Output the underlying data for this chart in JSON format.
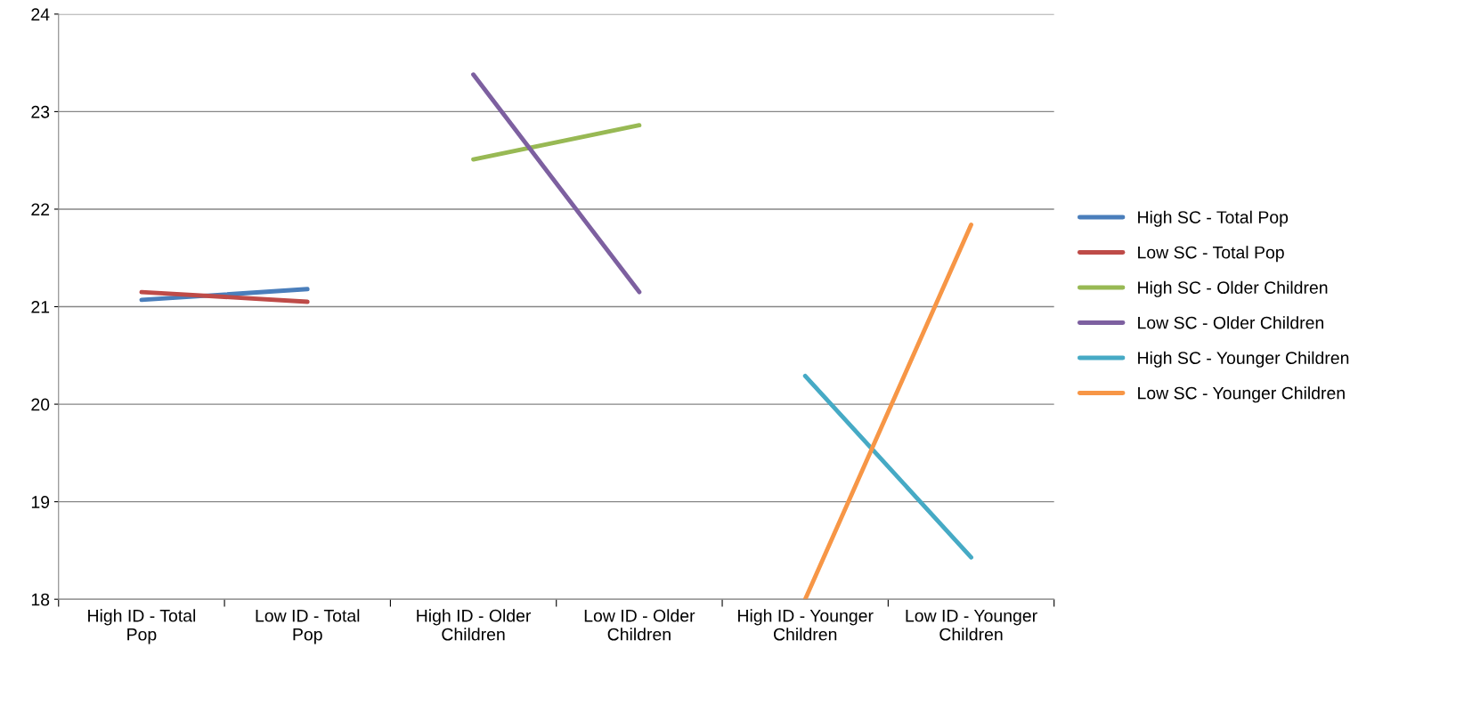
{
  "chart_data": {
    "type": "line",
    "categories": [
      "High ID - Total\nPop",
      "Low ID - Total\nPop",
      "High ID - Older\nChildren",
      "Low ID - Older\nChildren",
      "High ID - Younger\nChildren",
      "Low ID - Younger\nChildren"
    ],
    "series": [
      {
        "name": "High SC - Total Pop",
        "color": "#4a7ebb",
        "values": [
          21.07,
          21.18,
          null,
          null,
          null,
          null
        ]
      },
      {
        "name": "Low SC - Total Pop",
        "color": "#be4b48",
        "values": [
          21.15,
          21.05,
          null,
          null,
          null,
          null
        ]
      },
      {
        "name": "High SC - Older Children",
        "color": "#98b954",
        "values": [
          null,
          null,
          22.51,
          22.86,
          null,
          null
        ]
      },
      {
        "name": "Low SC - Older Children",
        "color": "#7d60a0",
        "values": [
          null,
          null,
          23.38,
          21.15,
          null,
          null
        ]
      },
      {
        "name": "High SC - Younger Children",
        "color": "#46aac5",
        "values": [
          null,
          null,
          null,
          null,
          20.29,
          18.43
        ]
      },
      {
        "name": "Low SC - Younger Children",
        "color": "#f79646",
        "values": [
          null,
          null,
          null,
          null,
          18.0,
          21.84
        ]
      }
    ],
    "ylim": [
      18,
      24
    ],
    "yticks": [
      18,
      19,
      20,
      21,
      22,
      23,
      24
    ],
    "grid": "y",
    "legend": "right",
    "marker": "none",
    "line_style": "solid"
  }
}
